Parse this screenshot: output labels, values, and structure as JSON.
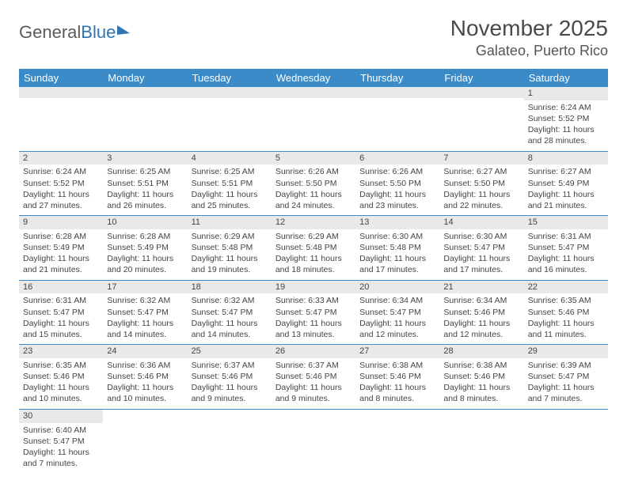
{
  "logo": {
    "text1": "General",
    "text2": "Blue"
  },
  "title": "November 2025",
  "location": "Galateo, Puerto Rico",
  "colors": {
    "header_bg": "#3b8bc8",
    "header_text": "#ffffff",
    "daynum_bg": "#e9e9e9",
    "border": "#3b8bc8",
    "title_color": "#4a4a4a",
    "logo_blue": "#2e75b6"
  },
  "day_headers": [
    "Sunday",
    "Monday",
    "Tuesday",
    "Wednesday",
    "Thursday",
    "Friday",
    "Saturday"
  ],
  "weeks": [
    [
      null,
      null,
      null,
      null,
      null,
      null,
      {
        "n": "1",
        "sr": "Sunrise: 6:24 AM",
        "ss": "Sunset: 5:52 PM",
        "dl": "Daylight: 11 hours and 28 minutes."
      }
    ],
    [
      {
        "n": "2",
        "sr": "Sunrise: 6:24 AM",
        "ss": "Sunset: 5:52 PM",
        "dl": "Daylight: 11 hours and 27 minutes."
      },
      {
        "n": "3",
        "sr": "Sunrise: 6:25 AM",
        "ss": "Sunset: 5:51 PM",
        "dl": "Daylight: 11 hours and 26 minutes."
      },
      {
        "n": "4",
        "sr": "Sunrise: 6:25 AM",
        "ss": "Sunset: 5:51 PM",
        "dl": "Daylight: 11 hours and 25 minutes."
      },
      {
        "n": "5",
        "sr": "Sunrise: 6:26 AM",
        "ss": "Sunset: 5:50 PM",
        "dl": "Daylight: 11 hours and 24 minutes."
      },
      {
        "n": "6",
        "sr": "Sunrise: 6:26 AM",
        "ss": "Sunset: 5:50 PM",
        "dl": "Daylight: 11 hours and 23 minutes."
      },
      {
        "n": "7",
        "sr": "Sunrise: 6:27 AM",
        "ss": "Sunset: 5:50 PM",
        "dl": "Daylight: 11 hours and 22 minutes."
      },
      {
        "n": "8",
        "sr": "Sunrise: 6:27 AM",
        "ss": "Sunset: 5:49 PM",
        "dl": "Daylight: 11 hours and 21 minutes."
      }
    ],
    [
      {
        "n": "9",
        "sr": "Sunrise: 6:28 AM",
        "ss": "Sunset: 5:49 PM",
        "dl": "Daylight: 11 hours and 21 minutes."
      },
      {
        "n": "10",
        "sr": "Sunrise: 6:28 AM",
        "ss": "Sunset: 5:49 PM",
        "dl": "Daylight: 11 hours and 20 minutes."
      },
      {
        "n": "11",
        "sr": "Sunrise: 6:29 AM",
        "ss": "Sunset: 5:48 PM",
        "dl": "Daylight: 11 hours and 19 minutes."
      },
      {
        "n": "12",
        "sr": "Sunrise: 6:29 AM",
        "ss": "Sunset: 5:48 PM",
        "dl": "Daylight: 11 hours and 18 minutes."
      },
      {
        "n": "13",
        "sr": "Sunrise: 6:30 AM",
        "ss": "Sunset: 5:48 PM",
        "dl": "Daylight: 11 hours and 17 minutes."
      },
      {
        "n": "14",
        "sr": "Sunrise: 6:30 AM",
        "ss": "Sunset: 5:47 PM",
        "dl": "Daylight: 11 hours and 17 minutes."
      },
      {
        "n": "15",
        "sr": "Sunrise: 6:31 AM",
        "ss": "Sunset: 5:47 PM",
        "dl": "Daylight: 11 hours and 16 minutes."
      }
    ],
    [
      {
        "n": "16",
        "sr": "Sunrise: 6:31 AM",
        "ss": "Sunset: 5:47 PM",
        "dl": "Daylight: 11 hours and 15 minutes."
      },
      {
        "n": "17",
        "sr": "Sunrise: 6:32 AM",
        "ss": "Sunset: 5:47 PM",
        "dl": "Daylight: 11 hours and 14 minutes."
      },
      {
        "n": "18",
        "sr": "Sunrise: 6:32 AM",
        "ss": "Sunset: 5:47 PM",
        "dl": "Daylight: 11 hours and 14 minutes."
      },
      {
        "n": "19",
        "sr": "Sunrise: 6:33 AM",
        "ss": "Sunset: 5:47 PM",
        "dl": "Daylight: 11 hours and 13 minutes."
      },
      {
        "n": "20",
        "sr": "Sunrise: 6:34 AM",
        "ss": "Sunset: 5:47 PM",
        "dl": "Daylight: 11 hours and 12 minutes."
      },
      {
        "n": "21",
        "sr": "Sunrise: 6:34 AM",
        "ss": "Sunset: 5:46 PM",
        "dl": "Daylight: 11 hours and 12 minutes."
      },
      {
        "n": "22",
        "sr": "Sunrise: 6:35 AM",
        "ss": "Sunset: 5:46 PM",
        "dl": "Daylight: 11 hours and 11 minutes."
      }
    ],
    [
      {
        "n": "23",
        "sr": "Sunrise: 6:35 AM",
        "ss": "Sunset: 5:46 PM",
        "dl": "Daylight: 11 hours and 10 minutes."
      },
      {
        "n": "24",
        "sr": "Sunrise: 6:36 AM",
        "ss": "Sunset: 5:46 PM",
        "dl": "Daylight: 11 hours and 10 minutes."
      },
      {
        "n": "25",
        "sr": "Sunrise: 6:37 AM",
        "ss": "Sunset: 5:46 PM",
        "dl": "Daylight: 11 hours and 9 minutes."
      },
      {
        "n": "26",
        "sr": "Sunrise: 6:37 AM",
        "ss": "Sunset: 5:46 PM",
        "dl": "Daylight: 11 hours and 9 minutes."
      },
      {
        "n": "27",
        "sr": "Sunrise: 6:38 AM",
        "ss": "Sunset: 5:46 PM",
        "dl": "Daylight: 11 hours and 8 minutes."
      },
      {
        "n": "28",
        "sr": "Sunrise: 6:38 AM",
        "ss": "Sunset: 5:46 PM",
        "dl": "Daylight: 11 hours and 8 minutes."
      },
      {
        "n": "29",
        "sr": "Sunrise: 6:39 AM",
        "ss": "Sunset: 5:47 PM",
        "dl": "Daylight: 11 hours and 7 minutes."
      }
    ],
    [
      {
        "n": "30",
        "sr": "Sunrise: 6:40 AM",
        "ss": "Sunset: 5:47 PM",
        "dl": "Daylight: 11 hours and 7 minutes."
      },
      null,
      null,
      null,
      null,
      null,
      null
    ]
  ]
}
